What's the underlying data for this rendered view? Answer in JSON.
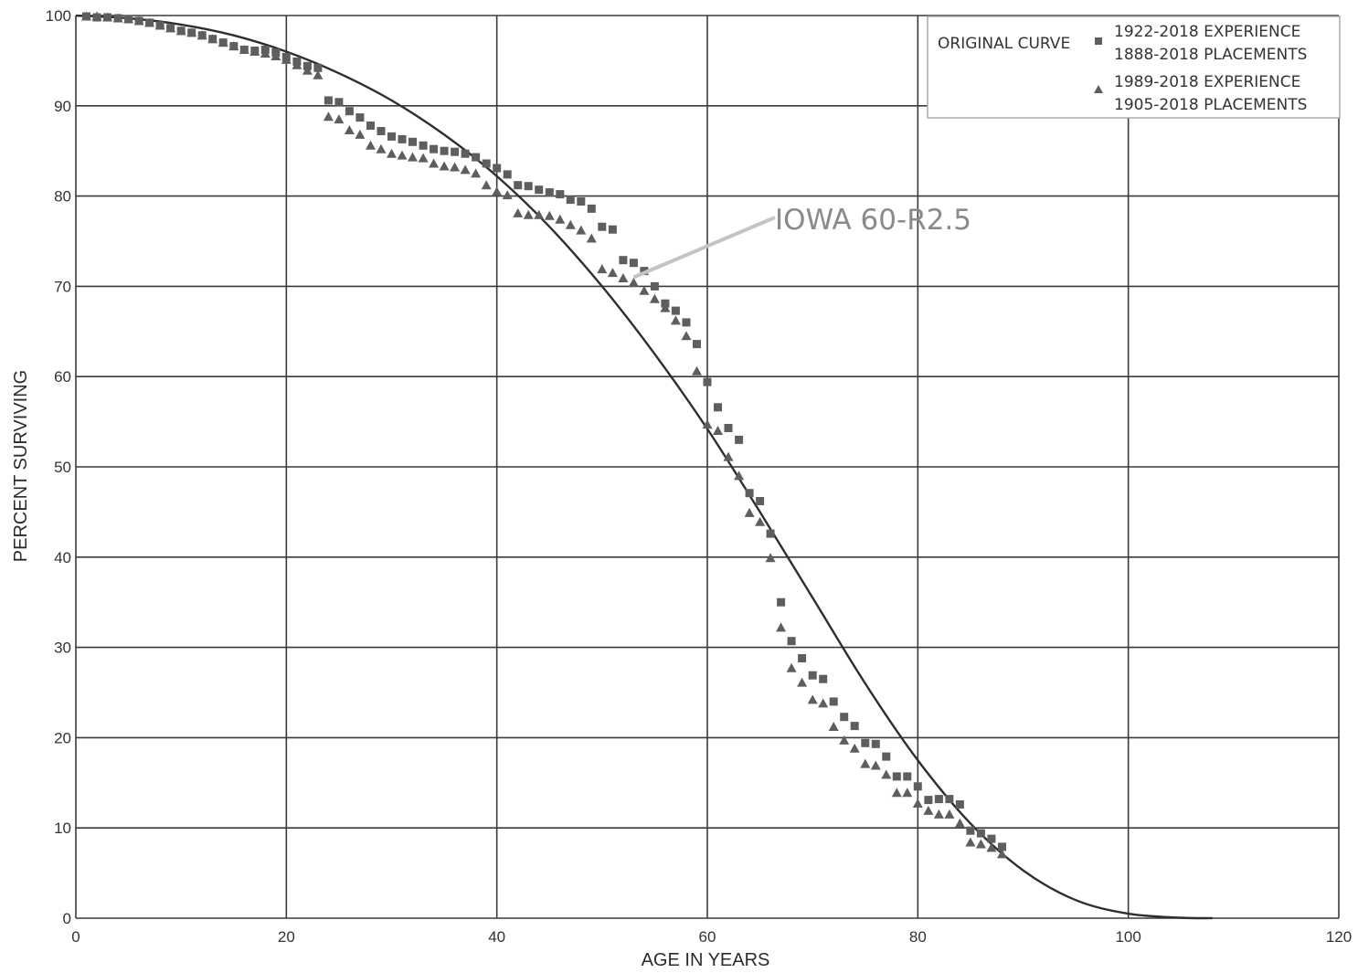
{
  "chart_data": {
    "type": "scatter",
    "xlabel": "AGE IN YEARS",
    "ylabel": "PERCENT SURVIVING",
    "xlim": [
      0,
      120
    ],
    "ylim": [
      0,
      100
    ],
    "x_ticks": [
      0,
      20,
      40,
      60,
      80,
      100,
      120
    ],
    "y_ticks": [
      0,
      10,
      20,
      30,
      40,
      50,
      60,
      70,
      80,
      90,
      100
    ],
    "grid": true,
    "legend_position": "top-right",
    "legend": {
      "curve_label": "ORIGINAL CURVE",
      "series1_label_line1": "1922-2018 EXPERIENCE",
      "series1_label_line2": "1888-2018 PLACEMENTS",
      "series2_label_line1": "1989-2018 EXPERIENCE",
      "series2_label_line2": "1905-2018 PLACEMENTS"
    },
    "annotation": {
      "text": "IOWA 60-R2.5",
      "points_to": [
        53,
        71
      ]
    },
    "curve": {
      "color": "#2e2e2e",
      "x": [
        0,
        5,
        10,
        15,
        20,
        25,
        30,
        35,
        40,
        45,
        50,
        55,
        60,
        65,
        70,
        75,
        80,
        85,
        90,
        95,
        100,
        105,
        108
      ],
      "y": [
        100,
        99.7,
        99,
        97.8,
        96,
        93.6,
        90.6,
        86.8,
        82.2,
        76.6,
        70,
        62.5,
        54.2,
        45,
        35.5,
        26,
        17.5,
        10.5,
        5.3,
        2.0,
        0.5,
        0.05,
        0
      ]
    },
    "series": [
      {
        "marker": "square",
        "color": "#5e5e5e",
        "x": [
          1,
          2,
          3,
          4,
          5,
          6,
          7,
          8,
          9,
          10,
          11,
          12,
          13,
          14,
          15,
          16,
          17,
          18,
          19,
          20,
          21,
          22,
          23,
          24,
          25,
          26,
          27,
          28,
          29,
          30,
          31,
          32,
          33,
          34,
          35,
          36,
          37,
          38,
          39,
          40,
          41,
          42,
          43,
          44,
          45,
          46,
          47,
          48,
          49,
          50,
          51,
          52,
          53,
          54,
          55,
          56,
          57,
          58,
          59,
          60,
          61,
          62,
          63,
          64,
          65,
          66,
          67,
          68,
          69,
          70,
          71,
          72,
          73,
          74,
          75,
          76,
          77,
          78,
          79,
          80,
          81,
          82,
          83,
          84,
          85,
          86,
          87,
          88
        ],
        "y": [
          99.9,
          99.8,
          99.8,
          99.7,
          99.6,
          99.4,
          99.2,
          98.9,
          98.6,
          98.3,
          98.1,
          97.8,
          97.4,
          97.0,
          96.6,
          96.2,
          96.1,
          96.2,
          95.9,
          95.4,
          94.9,
          94.4,
          94.2,
          90.6,
          90.4,
          89.4,
          88.7,
          87.8,
          87.2,
          86.6,
          86.3,
          86.0,
          85.6,
          85.2,
          85.0,
          84.9,
          84.7,
          84.3,
          83.6,
          83.1,
          82.4,
          81.2,
          81.1,
          80.7,
          80.4,
          80.2,
          79.6,
          79.4,
          78.6,
          76.6,
          76.3,
          72.9,
          72.6,
          71.7,
          70.0,
          68.1,
          67.3,
          66.0,
          63.6,
          59.4,
          56.6,
          54.3,
          53.0,
          47.1,
          46.2,
          42.6,
          35.0,
          30.7,
          28.8,
          26.9,
          26.5,
          24.0,
          22.3,
          21.3,
          19.4,
          19.3,
          17.9,
          15.7,
          15.7,
          14.6,
          13.1,
          13.2,
          13.2,
          12.6,
          9.7,
          9.4,
          8.8,
          7.9
        ]
      },
      {
        "marker": "triangle",
        "color": "#5e5e5e",
        "x": [
          1,
          2,
          3,
          4,
          5,
          6,
          7,
          8,
          9,
          10,
          11,
          12,
          13,
          14,
          15,
          16,
          17,
          18,
          19,
          20,
          21,
          22,
          23,
          24,
          25,
          26,
          27,
          28,
          29,
          30,
          31,
          32,
          33,
          34,
          35,
          36,
          37,
          38,
          39,
          40,
          41,
          42,
          43,
          44,
          45,
          46,
          47,
          48,
          49,
          50,
          51,
          52,
          53,
          54,
          55,
          56,
          57,
          58,
          59,
          60,
          61,
          62,
          63,
          64,
          65,
          66,
          67,
          68,
          69,
          70,
          71,
          72,
          73,
          74,
          75,
          76,
          77,
          78,
          79,
          80,
          81,
          82,
          83,
          84,
          85,
          86,
          87,
          88
        ],
        "y": [
          99.9,
          99.9,
          99.8,
          99.7,
          99.6,
          99.4,
          99.2,
          98.9,
          98.6,
          98.3,
          98.1,
          97.8,
          97.4,
          97.0,
          96.6,
          96.2,
          96.0,
          95.8,
          95.5,
          95.1,
          94.5,
          93.9,
          93.4,
          88.8,
          88.5,
          87.3,
          86.8,
          85.6,
          85.2,
          84.7,
          84.5,
          84.3,
          84.2,
          83.6,
          83.3,
          83.2,
          82.9,
          82.5,
          81.2,
          80.5,
          80.1,
          78.1,
          77.9,
          77.9,
          77.8,
          77.4,
          76.8,
          76.2,
          75.3,
          71.9,
          71.5,
          70.9,
          70.4,
          69.5,
          68.6,
          67.6,
          66.2,
          64.5,
          60.6,
          54.7,
          54.0,
          51.1,
          49.0,
          44.9,
          43.9,
          39.9,
          32.2,
          27.7,
          26.1,
          24.2,
          23.8,
          21.2,
          19.7,
          18.8,
          17.1,
          16.9,
          15.9,
          13.9,
          13.9,
          12.7,
          11.9,
          11.5,
          11.5,
          10.5,
          8.4,
          8.2,
          7.8,
          7.1
        ]
      }
    ]
  }
}
